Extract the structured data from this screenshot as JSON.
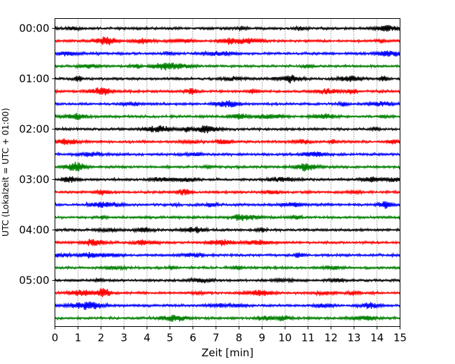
{
  "chart_data": {
    "type": "line",
    "title": "",
    "xlabel": "Zeit  [min]",
    "ylabel": "UTC (Lokalzeit = UTC + 01:00)",
    "xlim": [
      0,
      15
    ],
    "x_ticks": [
      0,
      1,
      2,
      3,
      4,
      5,
      6,
      7,
      8,
      9,
      10,
      11,
      12,
      13,
      14,
      15
    ],
    "y_tick_labels": [
      "00:00",
      "01:00",
      "02:00",
      "03:00",
      "04:00",
      "05:00"
    ],
    "rows_per_hour": 4,
    "row_minutes": 15,
    "trace_count": 24,
    "trace_colors": [
      "#000000",
      "#ff0000",
      "#0000ff",
      "#008000"
    ],
    "grid": "vertical dotted lines at each minute"
  }
}
